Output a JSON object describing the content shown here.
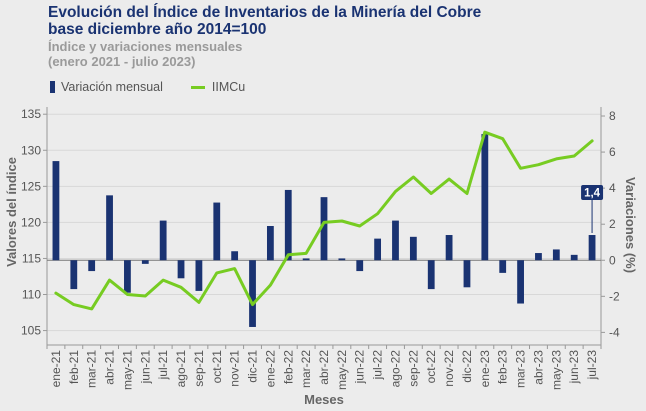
{
  "title_lines": [
    "Evolución del Índice de Inventarios de la Minería del Cobre",
    "base diciembre año 2014=100"
  ],
  "subtitle_lines": [
    "Índice y variaciones mensuales",
    "(enero 2021 - julio 2023)"
  ],
  "colors": {
    "bar": "#1a3372",
    "line": "#77cc22",
    "background": "#ececec",
    "grid": "#d8d8d8"
  },
  "chart_data": {
    "type": "bar+line",
    "categories": [
      "ene-21",
      "feb-21",
      "mar-21",
      "abr-21",
      "may-21",
      "jun-21",
      "jul-21",
      "ago-21",
      "sep-21",
      "oct-21",
      "nov-21",
      "dic-21",
      "ene-22",
      "feb-22",
      "mar-22",
      "abr-22",
      "may-22",
      "jun-22",
      "jul-22",
      "ago-22",
      "sep-22",
      "oct-22",
      "nov-22",
      "dic-22",
      "ene-23",
      "feb-23",
      "mar-23",
      "abr-23",
      "may-23",
      "jun-23",
      "jul-23"
    ],
    "series": [
      {
        "name": "Variación mensual",
        "type": "bar",
        "axis": "right",
        "values": [
          5.5,
          -1.6,
          -0.6,
          3.6,
          -1.8,
          -0.2,
          2.2,
          -1.0,
          -1.7,
          3.2,
          0.5,
          -3.7,
          1.9,
          3.9,
          0.1,
          3.5,
          0.1,
          -0.6,
          1.2,
          2.2,
          1.3,
          -1.6,
          1.4,
          -1.5,
          7.0,
          -0.7,
          -2.4,
          0.4,
          0.6,
          0.3,
          1.4
        ]
      },
      {
        "name": "IIMCu",
        "type": "line",
        "axis": "left",
        "values": [
          110.2,
          108.6,
          108.0,
          112.0,
          110.0,
          109.8,
          112.0,
          111.0,
          108.9,
          113.0,
          113.6,
          108.6,
          111.3,
          115.5,
          115.7,
          120.0,
          120.2,
          119.5,
          121.2,
          124.3,
          126.3,
          124.0,
          126.0,
          124.0,
          132.5,
          131.6,
          127.5,
          128.0,
          128.8,
          129.2,
          131.3
        ]
      }
    ],
    "annotation": {
      "category": "jul-23",
      "label": "1,4"
    },
    "xlabel": "Meses",
    "ylabel_left": "Valores del índice",
    "ylabel_right": "Variaciones (%)",
    "ylim_left": [
      103,
      136
    ],
    "yticks_left": [
      105,
      110,
      115,
      120,
      125,
      130,
      135
    ],
    "ylim_right": [
      -4.7,
      8.5
    ],
    "yticks_right": [
      -4,
      -2,
      0,
      2,
      4,
      6,
      8
    ],
    "grid": true,
    "legend_position": "top-left"
  }
}
